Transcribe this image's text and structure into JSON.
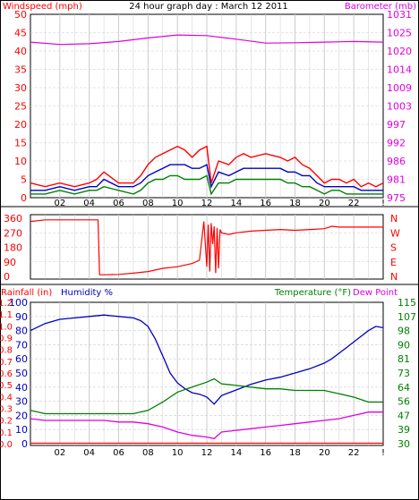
{
  "chart_data": [
    {
      "type": "line",
      "title": "24 hour graph day : March 12 2011",
      "left_axis_label": "Windspeed (mph)",
      "right_axis_label": "Barometer (mb)",
      "ylim_left": [
        0,
        50
      ],
      "left_ticks": [
        "0",
        "5",
        "10",
        "15",
        "20",
        "25",
        "30",
        "35",
        "40",
        "45",
        "50"
      ],
      "right_ticks": [
        "975",
        "981",
        "986",
        "992",
        "997",
        "1003",
        "1009",
        "1014",
        "1020",
        "1025",
        "1031"
      ],
      "ylim_right": [
        975,
        1031
      ],
      "x_ticks": [
        "02",
        "04",
        "06",
        "08",
        "10",
        "12",
        "14",
        "16",
        "18",
        "20",
        "22",
        "!"
      ],
      "grid": true,
      "series": [
        {
          "color": "#ff0000",
          "axis": "left",
          "x": [
            0,
            1,
            2,
            3,
            4,
            4.5,
            5,
            6,
            7,
            7.5,
            8,
            8.5,
            9,
            9.5,
            10,
            10.5,
            11,
            11.5,
            12,
            12.3,
            12.8,
            13.5,
            14,
            14.5,
            15,
            16,
            17,
            17.5,
            18,
            18.5,
            19,
            19.5,
            20,
            20.5,
            21,
            21.5,
            22,
            22.5,
            23,
            23.5,
            24
          ],
          "values": [
            4,
            3,
            4,
            3,
            4,
            5,
            7,
            4,
            4,
            6,
            9,
            11,
            12,
            13,
            14,
            13,
            11,
            13,
            14,
            4,
            10,
            9,
            11,
            12,
            11,
            12,
            11,
            10,
            11,
            9,
            8,
            6,
            4,
            5,
            5,
            4,
            5,
            3,
            4,
            3,
            4
          ]
        },
        {
          "color": "#0000c0",
          "axis": "left",
          "x": [
            0,
            1,
            2,
            3,
            4,
            4.5,
            5,
            6,
            7,
            7.5,
            8,
            8.5,
            9,
            9.5,
            10,
            10.5,
            11,
            11.5,
            12,
            12.3,
            12.8,
            13.5,
            14,
            14.5,
            15,
            16,
            17,
            17.5,
            18,
            18.5,
            19,
            19.5,
            20,
            20.5,
            21,
            21.5,
            22,
            22.5,
            23,
            23.5,
            24
          ],
          "values": [
            2,
            2,
            3,
            2,
            3,
            3,
            5,
            3,
            3,
            4,
            6,
            7,
            8,
            9,
            9,
            9,
            8,
            8,
            9,
            3,
            7,
            6,
            7,
            8,
            8,
            8,
            8,
            7,
            7,
            6,
            6,
            4,
            3,
            3,
            3,
            3,
            3,
            2,
            2,
            2,
            2
          ]
        },
        {
          "color": "#008000",
          "axis": "left",
          "x": [
            0,
            1,
            2,
            3,
            4,
            4.5,
            5,
            6,
            7,
            7.5,
            8,
            8.5,
            9,
            9.5,
            10,
            10.5,
            11,
            11.5,
            12,
            12.3,
            12.8,
            13.5,
            14,
            14.5,
            15,
            16,
            17,
            17.5,
            18,
            18.5,
            19,
            19.5,
            20,
            20.5,
            21,
            21.5,
            22,
            22.5,
            23,
            23.5,
            24
          ],
          "values": [
            1,
            1,
            2,
            1,
            2,
            2,
            3,
            2,
            1,
            2,
            4,
            5,
            5,
            6,
            6,
            5,
            5,
            5,
            6,
            1,
            4,
            4,
            5,
            5,
            5,
            5,
            5,
            4,
            4,
            3,
            3,
            2,
            1,
            2,
            2,
            1,
            1,
            1,
            1,
            1,
            1
          ]
        },
        {
          "color": "#e000e0",
          "axis": "right",
          "x": [
            0,
            2,
            4,
            6,
            8,
            10,
            12,
            14,
            16,
            18,
            20,
            22,
            24
          ],
          "values": [
            1022.5,
            1021.8,
            1022,
            1022.7,
            1023.8,
            1024.7,
            1024.5,
            1023.4,
            1022.2,
            1022.3,
            1022.5,
            1022.7,
            1022.5
          ]
        }
      ]
    },
    {
      "type": "line",
      "left_ticks": [
        "0",
        "90",
        "180",
        "270",
        "360"
      ],
      "right_ticks": [
        "N",
        "E",
        "S",
        "W",
        "N"
      ],
      "ylim": [
        0,
        360
      ],
      "x_ticks": [
        "02",
        "04",
        "06",
        "08",
        "10",
        "12",
        "14",
        "16",
        "18",
        "20",
        "22",
        "!"
      ],
      "grid": true,
      "series": [
        {
          "color": "#ff0000",
          "x": [
            0,
            1,
            2,
            3,
            4,
            4.6,
            4.7,
            5,
            6,
            7,
            8,
            9,
            10,
            11,
            11.5,
            11.8,
            12,
            12.1,
            12.2,
            12.3,
            12.4,
            12.5,
            12.6,
            12.7,
            12.8,
            12.9,
            13,
            13.5,
            14,
            15,
            16,
            17,
            18,
            19,
            20,
            20.5,
            21,
            22,
            23,
            24
          ],
          "values": [
            340,
            350,
            350,
            350,
            350,
            350,
            10,
            10,
            12,
            20,
            30,
            50,
            60,
            80,
            100,
            340,
            60,
            320,
            30,
            330,
            200,
            310,
            20,
            300,
            50,
            290,
            270,
            260,
            270,
            280,
            285,
            290,
            285,
            290,
            295,
            310,
            305,
            305,
            305,
            305
          ]
        }
      ]
    },
    {
      "type": "line",
      "left_axis_label": "Rainfall (in)",
      "left_axis_label_2": "Humidity %",
      "right_axis_label": "Temperature (°F)",
      "right_axis_label_2": "Dew Point",
      "ylim_humidity": [
        0,
        100
      ],
      "ylim_temperature": [
        30,
        115
      ],
      "rain_ticks": [
        "0.0",
        "0.1",
        "0.2",
        "0.3",
        "0.4",
        "0.5",
        "0.6",
        "0.7",
        "0.8",
        "0.9",
        "1.0",
        "1.1",
        "1.2"
      ],
      "humidity_ticks": [
        "0",
        "10",
        "20",
        "30",
        "40",
        "50",
        "60",
        "70",
        "80",
        "90",
        "100"
      ],
      "temperature_ticks": [
        "30",
        "39",
        "47",
        "56",
        "64",
        "73",
        "81",
        "90",
        "98",
        "107",
        "115"
      ],
      "x_ticks": [
        "02",
        "04",
        "06",
        "08",
        "10",
        "12",
        "14",
        "16",
        "18",
        "20",
        "22",
        "!"
      ],
      "grid": true,
      "series": [
        {
          "name": "Humidity %",
          "axis": "humidity",
          "color": "#0000c0",
          "x": [
            0,
            1,
            2,
            3,
            4,
            5,
            6,
            7,
            7.5,
            8,
            8.5,
            9,
            9.5,
            10,
            10.5,
            11,
            11.5,
            12,
            12.5,
            13,
            13.5,
            14,
            15,
            16,
            17,
            18,
            19,
            20,
            20.5,
            21,
            21.5,
            22,
            23,
            23.5,
            24
          ],
          "values": [
            80,
            85,
            88,
            89,
            90,
            91,
            90,
            89,
            87,
            83,
            74,
            62,
            50,
            43,
            39,
            36,
            35,
            33,
            28,
            34,
            36,
            38,
            42,
            45,
            47,
            50,
            53,
            57,
            60,
            64,
            68,
            72,
            80,
            83,
            82
          ]
        },
        {
          "name": "Temperature (°F)",
          "axis": "temperature",
          "color": "#008000",
          "x": [
            0,
            1,
            2,
            3,
            4,
            5,
            6,
            7,
            8,
            9,
            10,
            11,
            12,
            12.5,
            13,
            14,
            15,
            16,
            17,
            18,
            19,
            20,
            21,
            22,
            23,
            24
          ],
          "values": [
            50,
            48,
            48,
            48,
            48,
            48,
            48,
            48,
            50,
            55,
            61,
            64,
            67,
            69,
            66,
            65,
            64,
            63,
            63,
            62,
            62,
            62,
            60,
            58,
            55,
            55
          ]
        },
        {
          "name": "Dew Point",
          "axis": "temperature",
          "color": "#e000e0",
          "x": [
            0,
            1,
            2,
            3,
            4,
            5,
            6,
            7,
            8,
            9,
            10,
            11,
            12,
            12.5,
            13,
            14,
            15,
            16,
            17,
            18,
            19,
            20,
            21,
            22,
            23,
            24
          ],
          "values": [
            45,
            44,
            44,
            44,
            44,
            44,
            43,
            43,
            42,
            40,
            37,
            35,
            34,
            33,
            37,
            38,
            39,
            40,
            41,
            42,
            43,
            44,
            45,
            47,
            49,
            49
          ]
        },
        {
          "name": "Rainfall (in)",
          "axis": "rain",
          "color": "#ff0000",
          "x": [
            0,
            24
          ],
          "values": [
            0,
            0
          ]
        }
      ]
    }
  ],
  "colors": {
    "frame": "#000000",
    "grid": "#cccccc",
    "wind_label": "#ff0000",
    "baro_label": "#e000e0",
    "humidity_label": "#0000c0",
    "temperature_label": "#008000"
  }
}
